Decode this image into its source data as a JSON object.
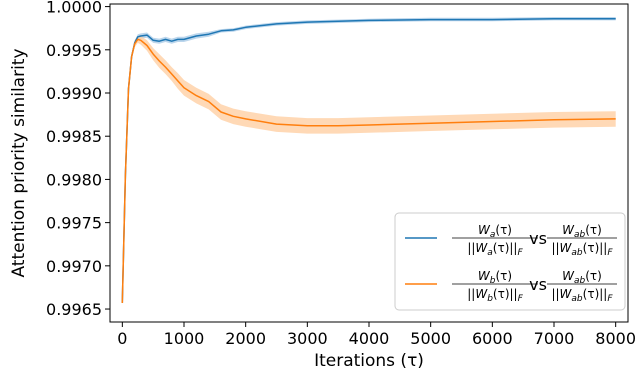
{
  "chart_data": {
    "type": "line",
    "title": "",
    "xlabel": "Iterations (τ)",
    "ylabel": "Attention priority similarity",
    "xlim": [
      -200,
      8200
    ],
    "ylim": [
      0.99635,
      1.00003
    ],
    "xticks": [
      0,
      1000,
      2000,
      3000,
      4000,
      5000,
      6000,
      7000,
      8000
    ],
    "yticks": [
      0.9965,
      0.997,
      0.9975,
      0.998,
      0.9985,
      0.999,
      0.9995,
      1.0
    ],
    "xtick_labels": [
      "0",
      "1000",
      "2000",
      "3000",
      "4000",
      "5000",
      "6000",
      "7000",
      "8000"
    ],
    "ytick_labels": [
      "0.9965",
      "0.9970",
      "0.9975",
      "0.9980",
      "0.9985",
      "0.9990",
      "0.9995",
      "1.0000"
    ],
    "grid": false,
    "legend_position": "lower-right",
    "series": [
      {
        "legend": {
          "lhs_num": "W_a(τ)",
          "lhs_den": "||W_a(τ)||_F",
          "vs": "vs",
          "rhs_num": "W_ab(τ)",
          "rhs_den": "||W_ab(τ)||_F"
        },
        "color": "#1f77b4",
        "band_color": "#a6c8e6",
        "x": [
          0,
          50,
          100,
          150,
          200,
          250,
          300,
          400,
          500,
          600,
          700,
          800,
          900,
          1000,
          1200,
          1400,
          1600,
          1800,
          2000,
          2500,
          3000,
          3500,
          4000,
          5000,
          6000,
          7000,
          8000
        ],
        "y": [
          0.99657,
          0.99805,
          0.99905,
          0.99942,
          0.99958,
          0.99965,
          0.99966,
          0.99967,
          0.99961,
          0.9996,
          0.99962,
          0.9996,
          0.99962,
          0.99962,
          0.99966,
          0.99968,
          0.99972,
          0.99973,
          0.99976,
          0.9998,
          0.99982,
          0.99983,
          0.99984,
          0.99985,
          0.99985,
          0.99986,
          0.99986
        ],
        "band": [
          2e-05,
          3e-05,
          3e-05,
          3e-05,
          3e-05,
          3e-05,
          3e-05,
          3e-05,
          3e-05,
          3e-05,
          3e-05,
          3e-05,
          3e-05,
          3e-05,
          3e-05,
          3e-05,
          2e-05,
          2e-05,
          2e-05,
          2e-05,
          2e-05,
          2e-05,
          2e-05,
          2e-05,
          2e-05,
          2e-05,
          2e-05
        ]
      },
      {
        "legend": {
          "lhs_num": "W_b(τ)",
          "lhs_den": "||W_b(τ)||_F",
          "vs": "vs",
          "rhs_num": "W_ab(τ)",
          "rhs_den": "||W_ab(τ)||_F"
        },
        "color": "#ff7f0e",
        "band_color": "#ffcc9e",
        "x": [
          0,
          50,
          100,
          150,
          200,
          250,
          300,
          400,
          500,
          600,
          700,
          800,
          900,
          1000,
          1200,
          1400,
          1600,
          1800,
          2000,
          2500,
          3000,
          3500,
          4000,
          5000,
          6000,
          7000,
          8000
        ],
        "y": [
          0.99657,
          0.99805,
          0.99905,
          0.99942,
          0.99957,
          0.99962,
          0.99961,
          0.99955,
          0.99945,
          0.99937,
          0.9993,
          0.99922,
          0.99914,
          0.99906,
          0.99897,
          0.9989,
          0.99878,
          0.99873,
          0.9987,
          0.99864,
          0.99862,
          0.99862,
          0.99863,
          0.99865,
          0.99867,
          0.99869,
          0.9987
        ],
        "band": [
          2e-05,
          3e-05,
          3e-05,
          3e-05,
          4e-05,
          4e-05,
          5e-05,
          6e-05,
          7e-05,
          8e-05,
          8e-05,
          8e-05,
          9e-05,
          9e-05,
          9e-05,
          9e-05,
          9e-05,
          9e-05,
          9e-05,
          9e-05,
          9e-05,
          9e-05,
          9e-05,
          9e-05,
          9e-05,
          9e-05,
          9e-05
        ]
      }
    ]
  }
}
